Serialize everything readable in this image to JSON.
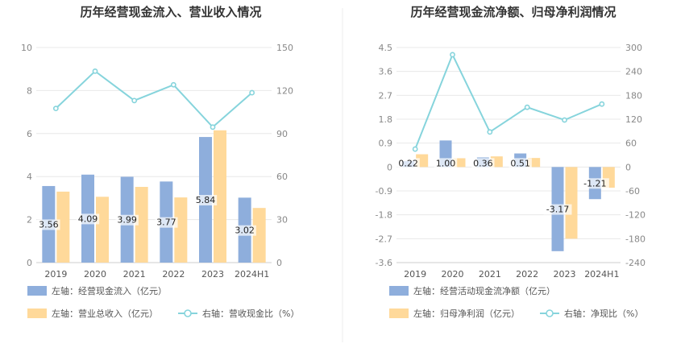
{
  "colors": {
    "bar_primary": "#8eaedc",
    "bar_secondary": "#ffd99a",
    "line": "#86d4dc",
    "grid": "#e8e8e8",
    "axis": "#cccccc",
    "divider": "#eeeeee",
    "label_bg": "#ffffff"
  },
  "chart_data": [
    {
      "type": "bar",
      "title": "历年经营现金流入、营业收入情况",
      "categories": [
        "2019",
        "2020",
        "2021",
        "2022",
        "2023",
        "2024H1"
      ],
      "left_axis": {
        "min": 0,
        "max": 10,
        "ticks": [
          "0",
          "2",
          "4",
          "6",
          "8",
          "10"
        ]
      },
      "right_axis": {
        "min": 0,
        "max": 150,
        "ticks": [
          "0",
          "30",
          "60",
          "90",
          "120",
          "150"
        ]
      },
      "series": [
        {
          "name": "左轴：经营现金流入（亿元）",
          "axis": "left",
          "kind": "bar",
          "values": [
            3.56,
            4.09,
            3.99,
            3.77,
            5.84,
            3.02
          ],
          "labels": [
            "3.56",
            "4.09",
            "3.99",
            "3.77",
            "5.84",
            "3.02"
          ]
        },
        {
          "name": "左轴：营业总收入（亿元）",
          "axis": "left",
          "kind": "bar",
          "values": [
            3.3,
            3.06,
            3.52,
            3.03,
            6.15,
            2.54
          ]
        },
        {
          "name": "右轴：营收现金比（%）",
          "axis": "right",
          "kind": "line",
          "values": [
            107.5,
            133.5,
            113,
            124,
            94.5,
            118.5
          ]
        }
      ]
    },
    {
      "type": "bar",
      "title": "历年经营现金流净额、归母净利润情况",
      "categories": [
        "2019",
        "2020",
        "2021",
        "2022",
        "2023",
        "2024H1"
      ],
      "left_axis": {
        "min": -3.6,
        "max": 4.5,
        "ticks": [
          "-3.6",
          "-2.7",
          "-1.8",
          "-0.9",
          "0",
          "0.9",
          "1.8",
          "2.7",
          "3.6",
          "4.5"
        ]
      },
      "right_axis": {
        "min": -240,
        "max": 300,
        "ticks": [
          "-240",
          "-180",
          "-120",
          "-60",
          "0",
          "60",
          "120",
          "180",
          "240",
          "300"
        ]
      },
      "series": [
        {
          "name": "左轴：经营活动现金流净额（亿元）",
          "axis": "left",
          "kind": "bar",
          "values": [
            0.22,
            1.0,
            0.36,
            0.51,
            -3.17,
            -1.21
          ],
          "labels": [
            "0.22",
            "1.00",
            "0.36",
            "0.51",
            "-3.17",
            "-1.21"
          ]
        },
        {
          "name": "左轴：归母净利润（亿元）",
          "axis": "left",
          "kind": "bar",
          "values": [
            0.48,
            0.33,
            0.4,
            0.34,
            -2.7,
            -0.78
          ]
        },
        {
          "name": "右轴：净现比（%）",
          "axis": "right",
          "kind": "line",
          "values": [
            45,
            282,
            88,
            150,
            118,
            158
          ]
        }
      ]
    }
  ]
}
